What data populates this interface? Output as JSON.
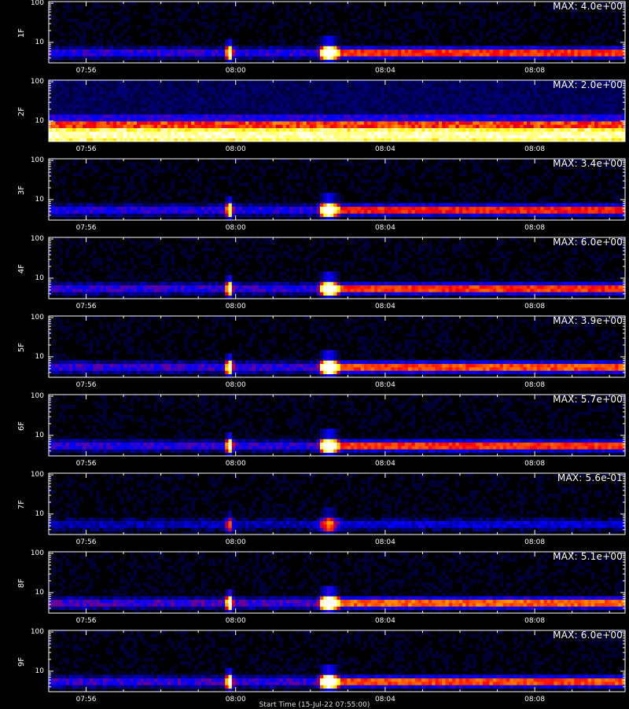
{
  "footer": "Start Time (15-Jul-22 07:55:00)",
  "chart_data": {
    "type": "heatmap",
    "x_tick_labels": [
      "07:56",
      "08:00",
      "08:04",
      "08:08"
    ],
    "y_tick_labels": [
      "100",
      "10"
    ],
    "y_scale": "log",
    "ylim": [
      3,
      110
    ],
    "colormap": [
      "#000000",
      "#0000ff",
      "#ff0000",
      "#ffff00",
      "#ffffff"
    ],
    "panels": [
      {
        "label": "1F",
        "max": "MAX: 4.0e+00",
        "mode": "normal",
        "level": 1.0
      },
      {
        "label": "2F",
        "max": "MAX: 2.0e+00",
        "mode": "band",
        "level": 1.0
      },
      {
        "label": "3F",
        "max": "MAX: 3.4e+00",
        "mode": "normal",
        "level": 0.95
      },
      {
        "label": "4F",
        "max": "MAX: 6.0e+00",
        "mode": "normal",
        "level": 1.0
      },
      {
        "label": "5F",
        "max": "MAX: 3.9e+00",
        "mode": "normal",
        "level": 1.05
      },
      {
        "label": "6F",
        "max": "MAX: 5.7e+00",
        "mode": "normal",
        "level": 1.0
      },
      {
        "label": "7F",
        "max": "MAX: 5.6e-01",
        "mode": "weak",
        "level": 0.6
      },
      {
        "label": "8F",
        "max": "MAX: 5.1e+00",
        "mode": "normal",
        "level": 1.1
      },
      {
        "label": "9F",
        "max": "MAX: 6.0e+00",
        "mode": "normal",
        "level": 1.05
      }
    ]
  }
}
